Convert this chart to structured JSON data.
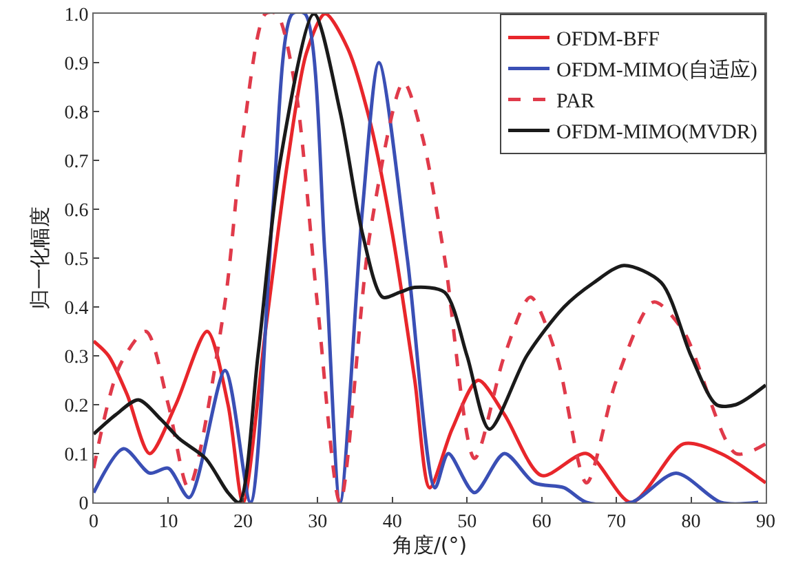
{
  "chart_data": {
    "type": "line",
    "xlabel": "角度/(°)",
    "ylabel": "归一化幅度",
    "xlim": [
      0,
      90
    ],
    "ylim": [
      0,
      1
    ],
    "xticks": [
      0,
      10,
      20,
      30,
      40,
      50,
      60,
      70,
      80,
      90
    ],
    "yticks": [
      0,
      0.1,
      0.2,
      0.3,
      0.4,
      0.5,
      0.6,
      0.7,
      0.8,
      0.9,
      {
        "value": 1,
        "label": "1.0"
      }
    ],
    "grid": false,
    "legend": "top right",
    "marker": "none",
    "series": [
      {
        "name": "OFDM-BFF",
        "color": "#e8262b",
        "line_style": "solid",
        "x": [
          0,
          2,
          4.5,
          7.5,
          11,
          15.2,
          18,
          20,
          23,
          26,
          28.5,
          31,
          34,
          37,
          40,
          43,
          45,
          48,
          51.5,
          55,
          60,
          66,
          72,
          79,
          84,
          90
        ],
        "values": [
          0.33,
          0.3,
          0.22,
          0.1,
          0.2,
          0.35,
          0.2,
          0,
          0.35,
          0.7,
          0.92,
          1,
          0.93,
          0.78,
          0.55,
          0.25,
          0.03,
          0.15,
          0.25,
          0.18,
          0.055,
          0.1,
          0,
          0.12,
          0.1,
          0.04
        ]
      },
      {
        "name": "OFDM-MIMO(自适应)",
        "color": "#3a4fb5",
        "line_style": "solid",
        "x": [
          0,
          4,
          7.5,
          10,
          12.8,
          17.6,
          21,
          24,
          26.6,
          28.3,
          31,
          33,
          36,
          38.2,
          42,
          45.7,
          47.5,
          51,
          55,
          59,
          63,
          66,
          72,
          78,
          84,
          89
        ],
        "values": [
          0.02,
          0.11,
          0.06,
          0.07,
          0.01,
          0.27,
          0,
          0.6,
          1,
          1,
          0.5,
          0,
          0.6,
          0.9,
          0.5,
          0.03,
          0.1,
          0.02,
          0.1,
          0.04,
          0.03,
          0,
          0,
          0.06,
          0,
          0
        ]
      },
      {
        "name": "PAR",
        "color": "#e03a4a",
        "line_style": "dashed",
        "x": [
          0,
          3.5,
          7,
          10,
          12.7,
          17.5,
          20,
          23,
          24.5,
          27,
          30,
          33,
          37,
          41.5,
          44,
          47,
          51,
          55,
          58.5,
          62,
          66,
          70,
          75,
          79,
          86,
          90
        ],
        "values": [
          0.07,
          0.28,
          0.35,
          0.2,
          0.03,
          0.4,
          0.75,
          1,
          1,
          0.85,
          0.4,
          0,
          0.55,
          0.86,
          0.75,
          0.5,
          0.09,
          0.3,
          0.42,
          0.3,
          0.04,
          0.25,
          0.41,
          0.35,
          0.1,
          0.12
        ]
      },
      {
        "name": "OFDM-MIMO(MVDR)",
        "color": "#1a1a1a",
        "line_style": "solid",
        "x": [
          0,
          3,
          6,
          9,
          11.5,
          15,
          18,
          19.5,
          22,
          25,
          29.5,
          33,
          36,
          38.7,
          41,
          43,
          47,
          50,
          53,
          58,
          63,
          67,
          71,
          76,
          80,
          83.4,
          86,
          90
        ],
        "values": [
          0.14,
          0.18,
          0.21,
          0.17,
          0.13,
          0.09,
          0.02,
          0,
          0.3,
          0.7,
          1,
          0.8,
          0.55,
          0.42,
          0.43,
          0.44,
          0.43,
          0.3,
          0.15,
          0.3,
          0.4,
          0.45,
          0.485,
          0.45,
          0.3,
          0.2,
          0.2,
          0.24
        ]
      }
    ]
  }
}
